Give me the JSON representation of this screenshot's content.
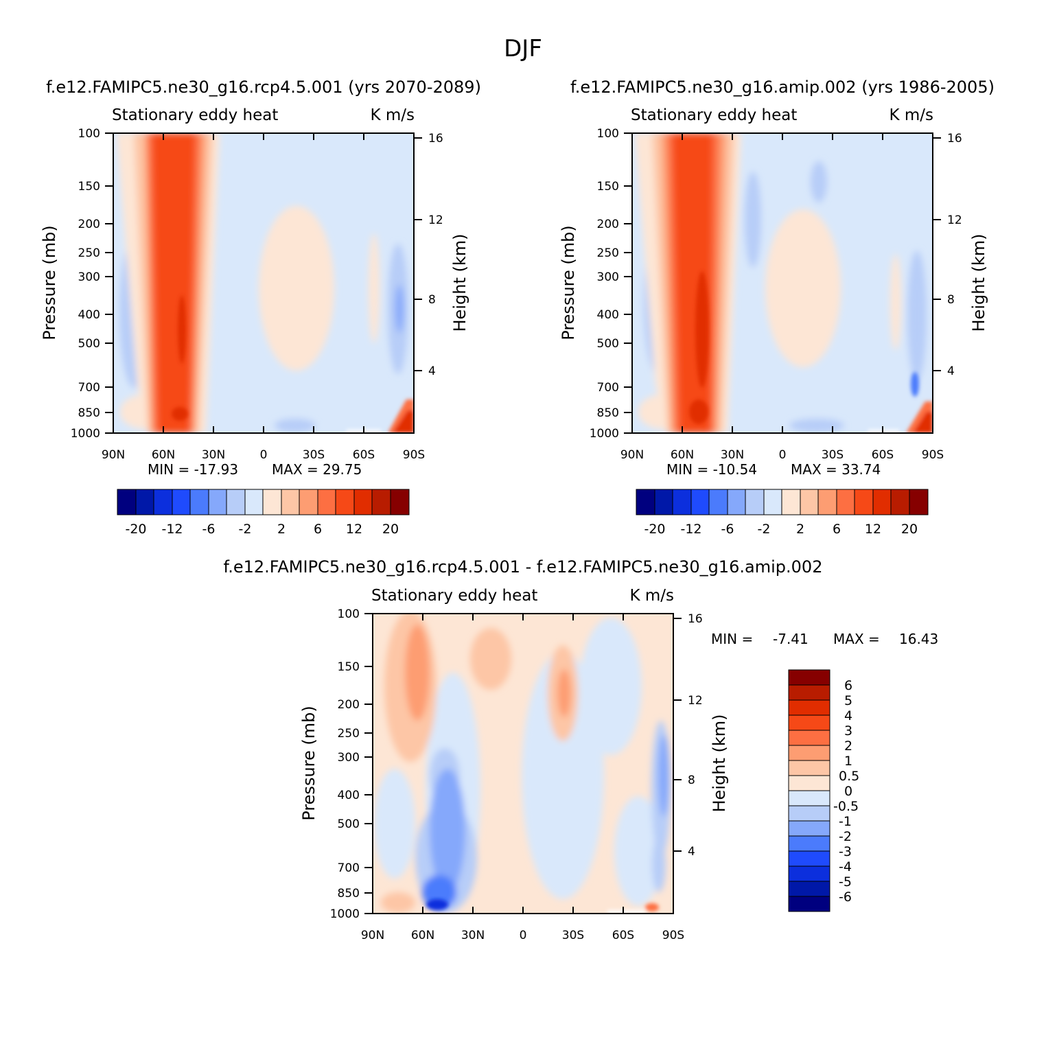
{
  "main_title": "DJF",
  "colors": {
    "abs_levels": [
      "#00007f",
      "#0018a8",
      "#0c2fdd",
      "#1f4bfd",
      "#4b7bfc",
      "#85a8fb",
      "#b7cdf8",
      "#d9e8fb",
      "#fde6d5",
      "#fdc6a6",
      "#fd9d72",
      "#fd6f42",
      "#f64917",
      "#e12d00",
      "#b81c00",
      "#860000"
    ],
    "diff_levels": [
      "#00007f",
      "#0018a8",
      "#0c2fdd",
      "#1f4bfd",
      "#4b7bfc",
      "#85a8fb",
      "#b7cdf8",
      "#d9e8fb",
      "#fde6d5",
      "#fdc6a6",
      "#fd9d72",
      "#fd6f42",
      "#f64917",
      "#e12d00",
      "#b81c00",
      "#860000"
    ]
  },
  "chart_data": [
    {
      "type": "heatmap",
      "title": "f.e12.FAMIPC5.ne30_g16.rcp4.5.001 (yrs 2070-2089)",
      "left_header": "Stationary eddy heat",
      "right_header": "K m/s",
      "ylabel": "Pressure (mb)",
      "right_ylabel": "Height (km)",
      "x_ticks": [
        "90N",
        "60N",
        "30N",
        "0",
        "30S",
        "60S",
        "90S"
      ],
      "y_ticks": [
        "100",
        "150",
        "200",
        "250",
        "300",
        "400",
        "500",
        "700",
        "850",
        "1000"
      ],
      "right_ticks": [
        "16",
        "12",
        "8",
        "4"
      ],
      "min_label": "MIN = -17.93",
      "max_label": "MAX = 29.75",
      "colorbar_labels": [
        "-20",
        "-12",
        "-6",
        "-2",
        "2",
        "6",
        "12",
        "20"
      ],
      "stats": {
        "min": -17.93,
        "max": 29.75
      }
    },
    {
      "type": "heatmap",
      "title": "f.e12.FAMIPC5.ne30_g16.amip.002 (yrs 1986-2005)",
      "left_header": "Stationary eddy heat",
      "right_header": "K m/s",
      "ylabel": "Pressure (mb)",
      "right_ylabel": "Height (km)",
      "x_ticks": [
        "90N",
        "60N",
        "30N",
        "0",
        "30S",
        "60S",
        "90S"
      ],
      "y_ticks": [
        "100",
        "150",
        "200",
        "250",
        "300",
        "400",
        "500",
        "700",
        "850",
        "1000"
      ],
      "right_ticks": [
        "16",
        "12",
        "8",
        "4"
      ],
      "min_label": "MIN = -10.54",
      "max_label": "MAX = 33.74",
      "colorbar_labels": [
        "-20",
        "-12",
        "-6",
        "-2",
        "2",
        "6",
        "12",
        "20"
      ],
      "stats": {
        "min": -10.54,
        "max": 33.74
      }
    },
    {
      "type": "heatmap",
      "title": "f.e12.FAMIPC5.ne30_g16.rcp4.5.001 - f.e12.FAMIPC5.ne30_g16.amip.002",
      "left_header": "Stationary eddy heat",
      "right_header": "K m/s",
      "ylabel": "Pressure (mb)",
      "right_ylabel": "Height (km)",
      "x_ticks": [
        "90N",
        "60N",
        "30N",
        "0",
        "30S",
        "60S",
        "90S"
      ],
      "y_ticks": [
        "100",
        "150",
        "200",
        "250",
        "300",
        "400",
        "500",
        "700",
        "850",
        "1000"
      ],
      "right_ticks": [
        "16",
        "12",
        "8",
        "4"
      ],
      "min_label": "MIN =",
      "min_value": "-7.41",
      "max_label": "MAX =",
      "max_value": "16.43",
      "colorbar_labels": [
        "6",
        "5",
        "4",
        "3",
        "2",
        "1",
        "0.5",
        "0",
        "-0.5",
        "-1",
        "-2",
        "-3",
        "-4",
        "-5",
        "-6"
      ],
      "stats": {
        "min": -7.41,
        "max": 16.43
      }
    }
  ]
}
